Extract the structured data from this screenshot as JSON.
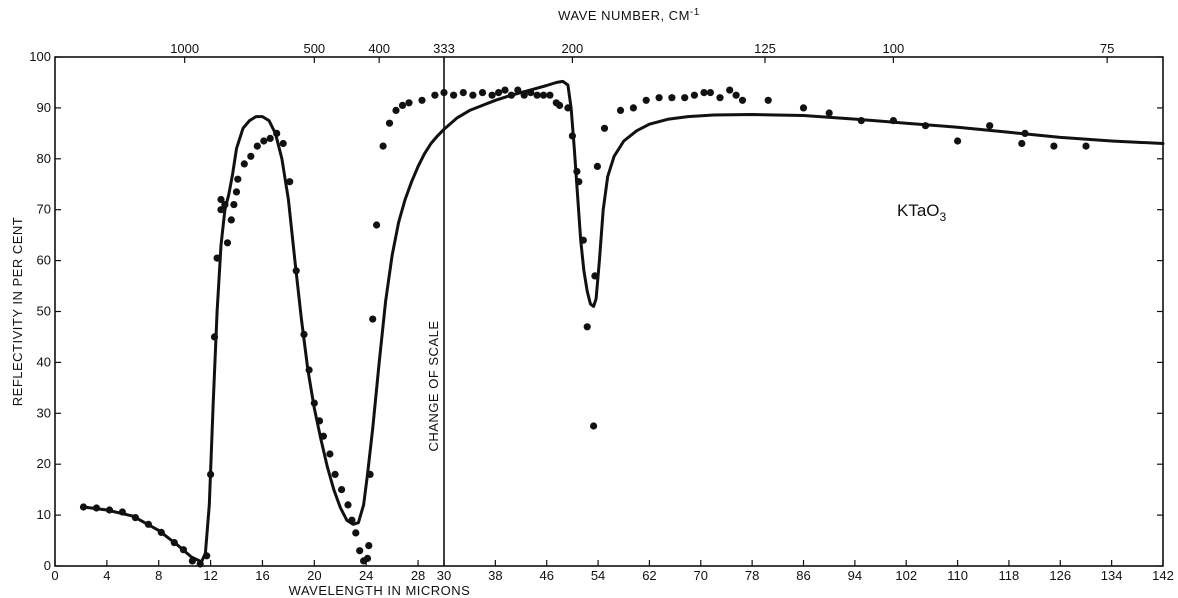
{
  "chart_data": {
    "type": "scatter",
    "title": "",
    "xlabel": "WAVELENGTH IN MICRONS",
    "ylabel": "REFLECTIVITY IN PER CENT",
    "x2label": "WAVE NUMBER, CM",
    "x2label_sup": "-1",
    "compound": "KTaO",
    "compound_sub": "3",
    "annotation": "CHANGE OF SCALE",
    "grid": false,
    "legend": "none",
    "ylim": [
      0,
      100
    ],
    "yticks": [
      "0",
      "10",
      "20",
      "30",
      "40",
      "50",
      "60",
      "70",
      "80",
      "90",
      "100"
    ],
    "xlim_left": [
      0,
      30
    ],
    "xlim_right": [
      30,
      142
    ],
    "scale_break_at": 30,
    "xticks_left": [
      "0",
      "4",
      "8",
      "12",
      "16",
      "20",
      "24",
      "28"
    ],
    "xticks_right": [
      "30",
      "38",
      "46",
      "54",
      "62",
      "70",
      "78",
      "86",
      "94",
      "102",
      "110",
      "118",
      "126",
      "134",
      "142"
    ],
    "top_ticks": [
      {
        "label": "1000",
        "at_wavelength": 10
      },
      {
        "label": "500",
        "at_wavelength": 20
      },
      {
        "label": "400",
        "at_wavelength": 25
      },
      {
        "label": "333",
        "at_wavelength": 30
      },
      {
        "label": "200",
        "at_wavelength": 50
      },
      {
        "label": "125",
        "at_wavelength": 80
      },
      {
        "label": "100",
        "at_wavelength": 100
      },
      {
        "label": "75",
        "at_wavelength": 133.3
      }
    ],
    "series": [
      {
        "name": "",
        "kind": "points",
        "points": [
          [
            2.2,
            11.6
          ],
          [
            3.2,
            11.4
          ],
          [
            4.2,
            11.0
          ],
          [
            5.2,
            10.6
          ],
          [
            6.2,
            9.5
          ],
          [
            7.2,
            8.2
          ],
          [
            8.2,
            6.6
          ],
          [
            9.2,
            4.6
          ],
          [
            9.9,
            3.2
          ],
          [
            10.6,
            1.0
          ],
          [
            11.2,
            0.4
          ],
          [
            11.7,
            2.0
          ],
          [
            12.0,
            18.0
          ],
          [
            12.3,
            45.0
          ],
          [
            12.5,
            60.5
          ],
          [
            12.8,
            70.0
          ],
          [
            12.8,
            72.0
          ],
          [
            13.1,
            71.0
          ],
          [
            13.3,
            63.5
          ],
          [
            13.6,
            68.0
          ],
          [
            13.8,
            71.0
          ],
          [
            14.0,
            73.5
          ],
          [
            14.1,
            76.0
          ],
          [
            14.6,
            79.0
          ],
          [
            15.1,
            80.5
          ],
          [
            15.6,
            82.5
          ],
          [
            16.1,
            83.5
          ],
          [
            16.6,
            84.0
          ],
          [
            17.1,
            85.0
          ],
          [
            17.6,
            83.0
          ],
          [
            18.1,
            75.5
          ],
          [
            18.6,
            58.0
          ],
          [
            19.2,
            45.5
          ],
          [
            19.6,
            38.5
          ],
          [
            20.0,
            32.0
          ],
          [
            20.4,
            28.5
          ],
          [
            20.7,
            25.5
          ],
          [
            21.2,
            22.0
          ],
          [
            21.6,
            18.0
          ],
          [
            22.1,
            15.0
          ],
          [
            22.6,
            12.0
          ],
          [
            22.9,
            9.0
          ],
          [
            23.2,
            6.5
          ],
          [
            23.5,
            3.0
          ],
          [
            23.8,
            1.0
          ],
          [
            24.1,
            1.5
          ],
          [
            24.2,
            4.0
          ],
          [
            24.3,
            18.0
          ],
          [
            24.5,
            48.5
          ],
          [
            24.8,
            67.0
          ],
          [
            25.3,
            82.5
          ],
          [
            25.8,
            87.0
          ],
          [
            26.3,
            89.5
          ],
          [
            26.8,
            90.5
          ],
          [
            27.3,
            91.0
          ],
          [
            28.3,
            91.5
          ],
          [
            29.3,
            92.5
          ],
          [
            30.0,
            93.0
          ],
          [
            31.5,
            92.5
          ],
          [
            33.0,
            93.0
          ],
          [
            34.5,
            92.5
          ],
          [
            36.0,
            93.0
          ],
          [
            37.5,
            92.5
          ],
          [
            38.5,
            93.0
          ],
          [
            39.5,
            93.5
          ],
          [
            40.5,
            92.5
          ],
          [
            41.5,
            93.5
          ],
          [
            42.5,
            92.5
          ],
          [
            43.5,
            93.0
          ],
          [
            44.5,
            92.5
          ],
          [
            45.5,
            92.5
          ],
          [
            46.5,
            92.5
          ],
          [
            47.5,
            91.0
          ],
          [
            48.0,
            90.5
          ],
          [
            49.3,
            90.0
          ],
          [
            50.0,
            84.5
          ],
          [
            50.7,
            77.5
          ],
          [
            51.0,
            75.5
          ],
          [
            51.7,
            64.0
          ],
          [
            52.3,
            47.0
          ],
          [
            53.3,
            27.5
          ],
          [
            53.5,
            57.0
          ],
          [
            53.9,
            78.5
          ],
          [
            55.0,
            86.0
          ],
          [
            57.5,
            89.5
          ],
          [
            59.5,
            90.0
          ],
          [
            61.5,
            91.5
          ],
          [
            63.5,
            92.0
          ],
          [
            65.5,
            92.0
          ],
          [
            67.5,
            92.0
          ],
          [
            69.0,
            92.5
          ],
          [
            70.5,
            93.0
          ],
          [
            71.5,
            93.0
          ],
          [
            73.0,
            92.0
          ],
          [
            74.5,
            93.5
          ],
          [
            75.5,
            92.5
          ],
          [
            76.5,
            91.5
          ],
          [
            80.5,
            91.5
          ],
          [
            86.0,
            90.0
          ],
          [
            90.0,
            89.0
          ],
          [
            95.0,
            87.5
          ],
          [
            100.0,
            87.5
          ],
          [
            105.0,
            86.5
          ],
          [
            110.0,
            83.5
          ],
          [
            115.0,
            86.5
          ],
          [
            120.0,
            83.0
          ],
          [
            120.5,
            85.0
          ],
          [
            125.0,
            82.5
          ],
          [
            130.0,
            82.5
          ]
        ]
      },
      {
        "name": "",
        "kind": "curve",
        "points": [
          [
            2.2,
            11.6
          ],
          [
            4.0,
            11.0
          ],
          [
            6.0,
            9.8
          ],
          [
            8.0,
            7.0
          ],
          [
            9.5,
            4.0
          ],
          [
            10.5,
            1.8
          ],
          [
            11.3,
            0.8
          ],
          [
            11.6,
            2.5
          ],
          [
            11.9,
            12.0
          ],
          [
            12.2,
            32.0
          ],
          [
            12.5,
            50.0
          ],
          [
            12.8,
            63.0
          ],
          [
            13.1,
            70.0
          ],
          [
            13.4,
            73.0
          ],
          [
            13.7,
            77.0
          ],
          [
            14.0,
            82.0
          ],
          [
            14.5,
            86.0
          ],
          [
            15.0,
            87.5
          ],
          [
            15.5,
            88.3
          ],
          [
            16.0,
            88.3
          ],
          [
            16.5,
            87.5
          ],
          [
            17.0,
            85.0
          ],
          [
            17.5,
            80.0
          ],
          [
            18.0,
            72.0
          ],
          [
            18.5,
            60.0
          ],
          [
            19.0,
            48.5
          ],
          [
            19.5,
            38.5
          ],
          [
            20.0,
            31.0
          ],
          [
            20.5,
            25.0
          ],
          [
            21.0,
            19.5
          ],
          [
            21.5,
            15.0
          ],
          [
            22.0,
            11.5
          ],
          [
            22.5,
            9.0
          ],
          [
            23.0,
            8.2
          ],
          [
            23.4,
            8.5
          ],
          [
            23.8,
            12.0
          ],
          [
            24.1,
            18.0
          ],
          [
            24.5,
            27.0
          ],
          [
            25.0,
            40.0
          ],
          [
            25.5,
            52.0
          ],
          [
            26.0,
            61.0
          ],
          [
            26.5,
            67.5
          ],
          [
            27.0,
            72.0
          ],
          [
            27.5,
            75.5
          ],
          [
            28.0,
            78.5
          ],
          [
            28.5,
            81.0
          ],
          [
            29.0,
            83.0
          ],
          [
            29.5,
            84.5
          ],
          [
            30.0,
            85.8
          ],
          [
            32.0,
            88.0
          ],
          [
            34.0,
            89.5
          ],
          [
            36.0,
            90.5
          ],
          [
            38.0,
            91.5
          ],
          [
            40.0,
            92.3
          ],
          [
            42.0,
            93.0
          ],
          [
            44.0,
            93.7
          ],
          [
            46.0,
            94.4
          ],
          [
            47.5,
            95.0
          ],
          [
            48.5,
            95.2
          ],
          [
            49.3,
            94.5
          ],
          [
            49.8,
            90.0
          ],
          [
            50.3,
            82.0
          ],
          [
            50.8,
            73.0
          ],
          [
            51.3,
            64.0
          ],
          [
            51.8,
            58.0
          ],
          [
            52.3,
            54.0
          ],
          [
            52.8,
            51.5
          ],
          [
            53.3,
            51.0
          ],
          [
            53.7,
            52.5
          ],
          [
            54.2,
            60.0
          ],
          [
            54.8,
            70.0
          ],
          [
            55.5,
            76.5
          ],
          [
            56.5,
            80.5
          ],
          [
            58.0,
            83.5
          ],
          [
            60.0,
            85.5
          ],
          [
            62.0,
            86.8
          ],
          [
            65.0,
            87.8
          ],
          [
            68.0,
            88.3
          ],
          [
            72.0,
            88.6
          ],
          [
            78.0,
            88.7
          ],
          [
            86.0,
            88.5
          ],
          [
            94.0,
            87.8
          ],
          [
            102.0,
            87.0
          ],
          [
            110.0,
            86.2
          ],
          [
            118.0,
            85.2
          ],
          [
            126.0,
            84.2
          ],
          [
            134.0,
            83.5
          ],
          [
            142.0,
            83.0
          ]
        ]
      }
    ]
  }
}
